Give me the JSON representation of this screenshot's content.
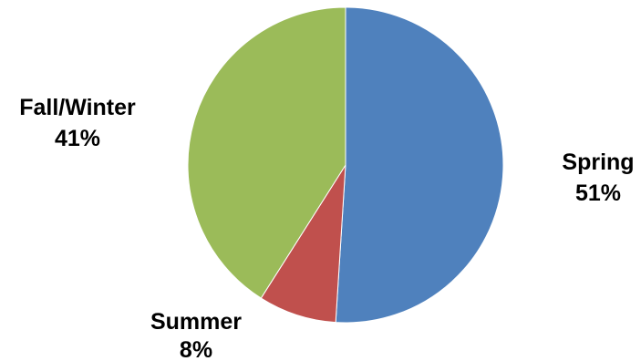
{
  "chart_data": {
    "type": "pie",
    "title": "",
    "slices": [
      {
        "label": "Spring",
        "value": 51,
        "value_label": "51%",
        "color": "#4F81BD"
      },
      {
        "label": "Summer",
        "value": 8,
        "value_label": "8%",
        "color": "#C0504D"
      },
      {
        "label": "Fall/Winter",
        "value": 41,
        "value_label": "41%",
        "color": "#9BBB59"
      }
    ],
    "start_angle": "12 o'clock",
    "direction": "clockwise",
    "legend": "none"
  }
}
